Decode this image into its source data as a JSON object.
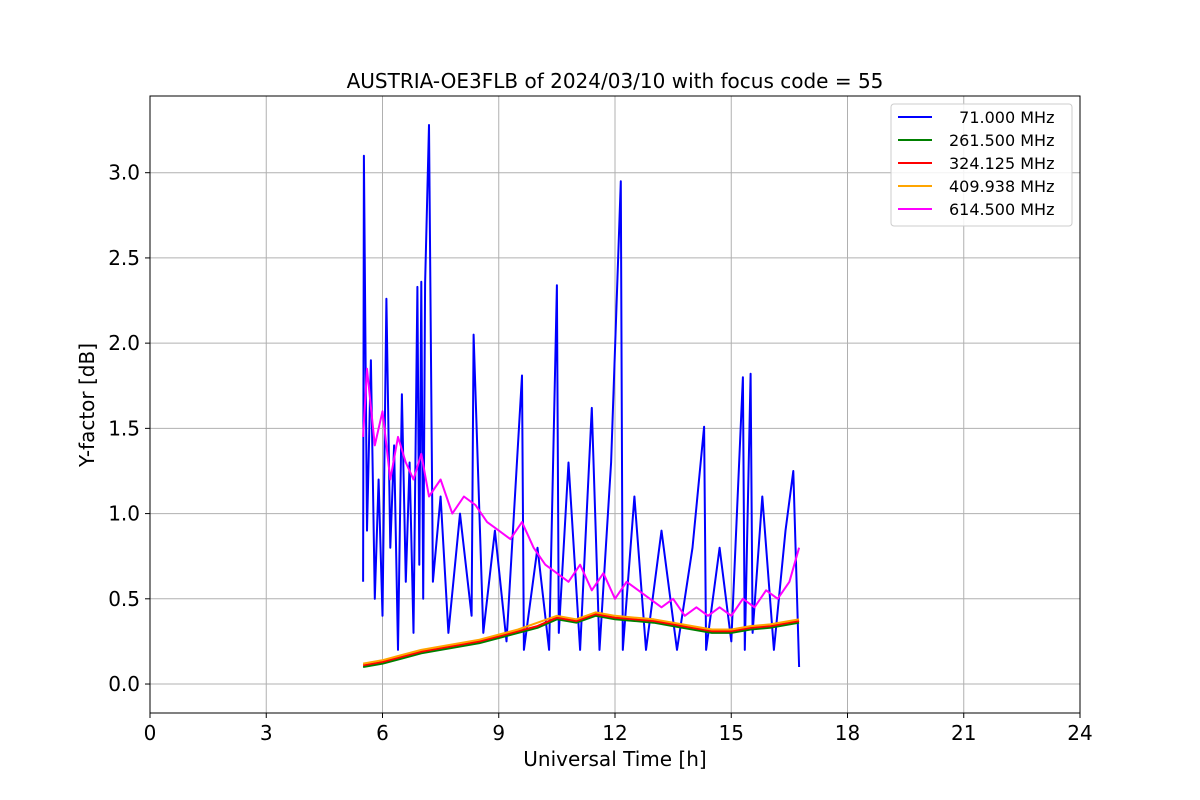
{
  "chart_data": {
    "type": "line",
    "title": "AUSTRIA-OE3FLB of 2024/03/10 with focus code = 55",
    "xlabel": "Universal Time [h]",
    "ylabel": "Y-factor [dB]",
    "xlim": [
      0,
      24
    ],
    "ylim": [
      -0.17,
      3.45
    ],
    "xticks": [
      0,
      3,
      6,
      9,
      12,
      15,
      18,
      21,
      24
    ],
    "xtick_labels": [
      "0",
      "3",
      "6",
      "9",
      "12",
      "15",
      "18",
      "21",
      "24"
    ],
    "yticks": [
      0.0,
      0.5,
      1.0,
      1.5,
      2.0,
      2.5,
      3.0
    ],
    "ytick_labels": [
      "0.0",
      "0.5",
      "1.0",
      "1.5",
      "2.0",
      "2.5",
      "3.0"
    ],
    "grid": true,
    "legend_position": "top-right",
    "series": [
      {
        "name": "  71.000 MHz",
        "color": "#0000ff",
        "x": [
          5.5,
          5.52,
          5.6,
          5.7,
          5.8,
          5.9,
          6.0,
          6.1,
          6.2,
          6.3,
          6.4,
          6.5,
          6.6,
          6.7,
          6.8,
          6.9,
          6.95,
          7.0,
          7.05,
          7.1,
          7.2,
          7.3,
          7.5,
          7.7,
          8.0,
          8.3,
          8.35,
          8.6,
          8.9,
          9.2,
          9.6,
          9.65,
          10.0,
          10.3,
          10.5,
          10.55,
          10.8,
          11.1,
          11.4,
          11.6,
          11.9,
          12.15,
          12.2,
          12.5,
          12.8,
          13.2,
          13.6,
          14.0,
          14.3,
          14.35,
          14.7,
          15.0,
          15.3,
          15.35,
          15.5,
          15.55,
          15.8,
          16.1,
          16.4,
          16.6,
          16.75
        ],
        "y": [
          0.6,
          3.1,
          0.9,
          1.9,
          0.5,
          1.2,
          0.4,
          2.26,
          0.8,
          1.4,
          0.2,
          1.7,
          0.6,
          1.3,
          0.3,
          2.33,
          0.7,
          2.36,
          0.5,
          2.35,
          3.28,
          0.6,
          1.1,
          0.3,
          1.0,
          0.4,
          2.05,
          0.3,
          0.9,
          0.25,
          1.81,
          0.2,
          0.8,
          0.2,
          2.34,
          0.3,
          1.3,
          0.2,
          1.62,
          0.2,
          1.3,
          2.95,
          0.2,
          1.1,
          0.2,
          0.9,
          0.2,
          0.8,
          1.51,
          0.2,
          0.8,
          0.25,
          1.8,
          0.2,
          1.82,
          0.3,
          1.1,
          0.2,
          0.9,
          1.25,
          0.1
        ]
      },
      {
        "name": "261.500 MHz",
        "color": "#008000",
        "x": [
          5.5,
          6.0,
          6.5,
          7.0,
          7.5,
          8.0,
          8.5,
          9.0,
          9.5,
          10.0,
          10.5,
          11.0,
          11.5,
          12.0,
          12.5,
          13.0,
          13.5,
          14.0,
          14.5,
          15.0,
          15.5,
          16.0,
          16.5,
          16.75
        ],
        "y": [
          0.1,
          0.12,
          0.15,
          0.18,
          0.2,
          0.22,
          0.24,
          0.27,
          0.3,
          0.33,
          0.38,
          0.36,
          0.4,
          0.38,
          0.37,
          0.36,
          0.34,
          0.32,
          0.3,
          0.3,
          0.32,
          0.33,
          0.35,
          0.36
        ]
      },
      {
        "name": "324.125 MHz",
        "color": "#ff0000",
        "x": [
          5.5,
          6.0,
          6.5,
          7.0,
          7.5,
          8.0,
          8.5,
          9.0,
          9.5,
          10.0,
          10.5,
          11.0,
          11.5,
          12.0,
          12.5,
          13.0,
          13.5,
          14.0,
          14.5,
          15.0,
          15.5,
          16.0,
          16.5,
          16.75
        ],
        "y": [
          0.11,
          0.13,
          0.16,
          0.19,
          0.21,
          0.23,
          0.25,
          0.28,
          0.31,
          0.34,
          0.39,
          0.37,
          0.41,
          0.39,
          0.38,
          0.37,
          0.35,
          0.33,
          0.31,
          0.31,
          0.33,
          0.34,
          0.36,
          0.37
        ]
      },
      {
        "name": "409.938 MHz",
        "color": "#ffa500",
        "x": [
          5.5,
          6.0,
          6.5,
          7.0,
          7.5,
          8.0,
          8.5,
          9.0,
          9.5,
          10.0,
          10.5,
          11.0,
          11.5,
          12.0,
          12.5,
          13.0,
          13.5,
          14.0,
          14.5,
          15.0,
          15.5,
          16.0,
          16.5,
          16.75
        ],
        "y": [
          0.12,
          0.14,
          0.17,
          0.2,
          0.22,
          0.24,
          0.26,
          0.29,
          0.32,
          0.36,
          0.4,
          0.38,
          0.42,
          0.4,
          0.39,
          0.38,
          0.36,
          0.34,
          0.32,
          0.32,
          0.34,
          0.35,
          0.37,
          0.38
        ]
      },
      {
        "name": "614.500 MHz",
        "color": "#ff00ff",
        "x": [
          5.5,
          5.6,
          5.8,
          6.0,
          6.2,
          6.4,
          6.6,
          6.8,
          7.0,
          7.2,
          7.5,
          7.8,
          8.1,
          8.4,
          8.7,
          9.0,
          9.3,
          9.6,
          9.9,
          10.2,
          10.5,
          10.8,
          11.1,
          11.4,
          11.7,
          12.0,
          12.3,
          12.6,
          12.9,
          13.2,
          13.5,
          13.8,
          14.1,
          14.4,
          14.7,
          15.0,
          15.3,
          15.6,
          15.9,
          16.2,
          16.5,
          16.75
        ],
        "y": [
          1.45,
          1.85,
          1.4,
          1.6,
          1.2,
          1.45,
          1.3,
          1.2,
          1.35,
          1.1,
          1.2,
          1.0,
          1.1,
          1.05,
          0.95,
          0.9,
          0.85,
          0.95,
          0.8,
          0.7,
          0.65,
          0.6,
          0.7,
          0.55,
          0.65,
          0.5,
          0.6,
          0.55,
          0.5,
          0.45,
          0.5,
          0.4,
          0.45,
          0.4,
          0.45,
          0.4,
          0.5,
          0.45,
          0.55,
          0.5,
          0.6,
          0.8
        ]
      }
    ]
  }
}
